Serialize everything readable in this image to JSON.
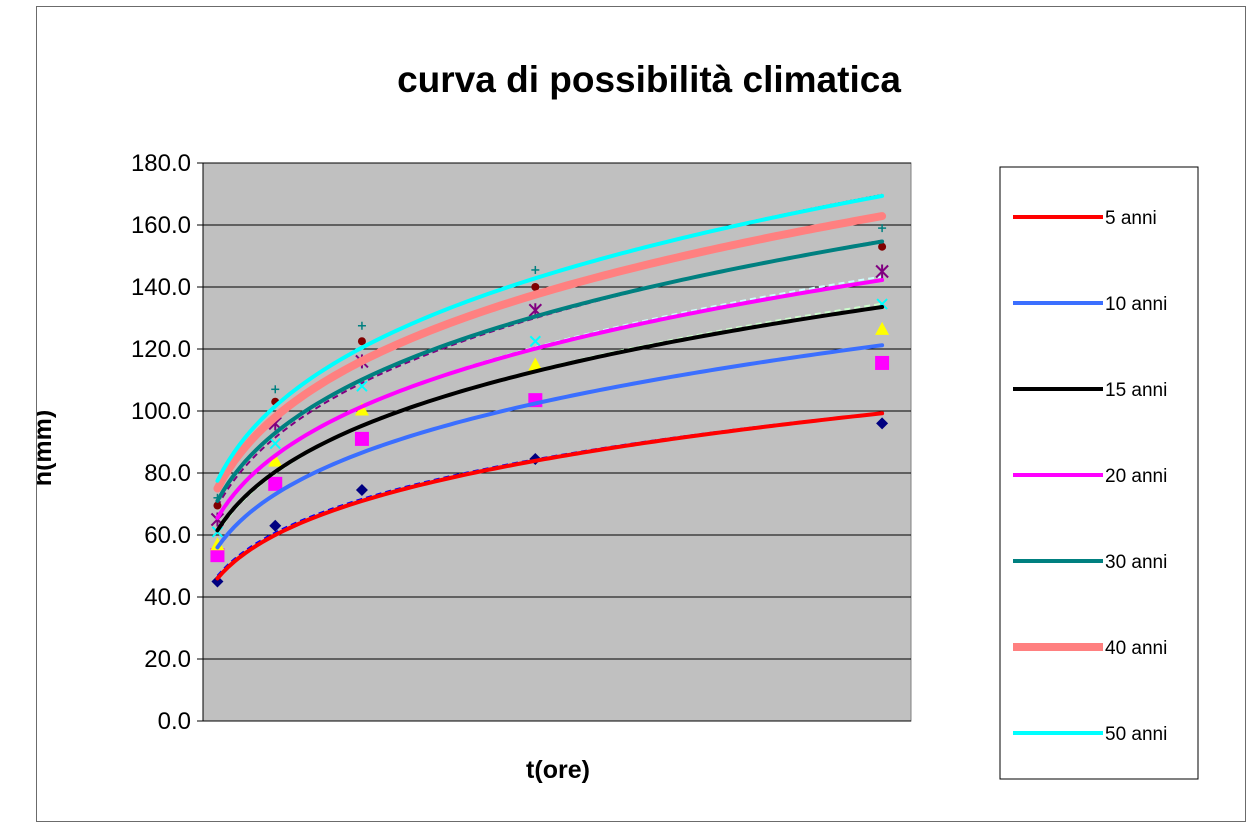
{
  "chart_data": {
    "type": "line",
    "title": "curva di possibilità climatica",
    "xlabel": "t(ore)",
    "ylabel": "h(mm)",
    "ylim": [
      0,
      180
    ],
    "y_ticks": [
      "0.0",
      "20.0",
      "40.0",
      "60.0",
      "80.0",
      "100.0",
      "120.0",
      "140.0",
      "160.0",
      "180.0"
    ],
    "x_ticks_shown": false,
    "xlim": [
      0.5,
      25
    ],
    "grid": "horizontal",
    "plot_background": "#c0c0c0",
    "legend_position": "right",
    "x": [
      1,
      3,
      6,
      12,
      24
    ],
    "trend_curves": [
      {
        "name": "5 anni",
        "color": "#ff0000",
        "width": 4,
        "a": 46.0,
        "n": 0.242
      },
      {
        "name": "10 anni",
        "color": "#3b6fff",
        "width": 4,
        "a": 56.0,
        "n": 0.243
      },
      {
        "name": "15 anni",
        "color": "#000000",
        "width": 4,
        "a": 61.5,
        "n": 0.244
      },
      {
        "name": "20 anni",
        "color": "#ff00ff",
        "width": 4,
        "a": 65.5,
        "n": 0.244
      },
      {
        "name": "30 anni",
        "color": "#008080",
        "width": 4,
        "a": 71.0,
        "n": 0.245
      },
      {
        "name": "40 anni",
        "color": "#ff8080",
        "width": 8,
        "a": 75.0,
        "n": 0.244
      },
      {
        "name": "50 anni",
        "color": "#00ffff",
        "width": 4,
        "a": 77.5,
        "n": 0.246
      }
    ],
    "data_series": [
      {
        "color": "#000080",
        "marker": "diamond",
        "line": "#0000ff",
        "values": [
          45.0,
          63.0,
          74.5,
          84.5,
          96.0
        ]
      },
      {
        "color": "#ff00ff",
        "marker": "square",
        "line": "#ff00ff",
        "values": [
          53.5,
          76.5,
          91.0,
          103.5,
          115.5
        ]
      },
      {
        "color": "#ffff00",
        "marker": "triangle",
        "line": "#ccffcc",
        "values": [
          57.0,
          84.0,
          100.5,
          115.0,
          126.5
        ]
      },
      {
        "color": "#00ffff",
        "marker": "x",
        "line": "#ccffff",
        "values": [
          61.0,
          89.5,
          108.0,
          122.5,
          134.5
        ]
      },
      {
        "color": "#800080",
        "marker": "star",
        "line": "#800080",
        "values": [
          65.0,
          96.0,
          116.0,
          132.5,
          145.0
        ]
      },
      {
        "color": "#800000",
        "marker": "circle",
        "line": "#800000",
        "values": [
          69.5,
          103.0,
          122.5,
          140.0,
          153.0
        ]
      },
      {
        "color": "#008080",
        "marker": "plus",
        "line": "#008080",
        "values": [
          72.0,
          107.0,
          127.5,
          145.5,
          159.0
        ]
      }
    ]
  }
}
